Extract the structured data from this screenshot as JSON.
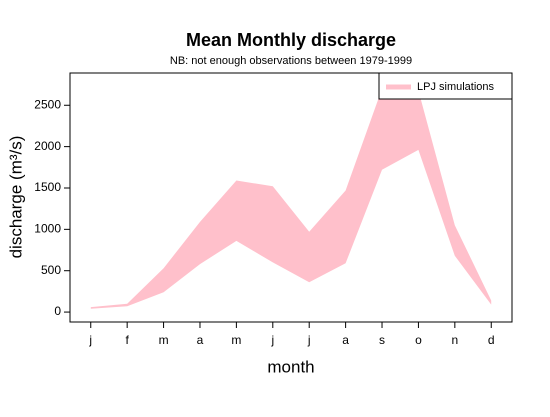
{
  "chart_data": {
    "type": "band",
    "title": "Mean Monthly discharge",
    "subtitle": "NB: not enough observations between 1979-1999",
    "xlabel": "month",
    "ylabel": "discharge (m³/s)",
    "categories": [
      "j",
      "f",
      "m",
      "a",
      "m",
      "j",
      "j",
      "a",
      "s",
      "o",
      "n",
      "d"
    ],
    "series": [
      {
        "name": "LPJ simulations",
        "color": "#ffc0cb",
        "lower": [
          40,
          70,
          240,
          580,
          860,
          600,
          360,
          590,
          1720,
          1960,
          680,
          90
        ],
        "upper": [
          60,
          100,
          530,
          1090,
          1590,
          1520,
          970,
          1470,
          2700,
          2680,
          1050,
          140
        ]
      }
    ],
    "ylim": [
      -120,
      2890
    ],
    "yticks": [
      0,
      500,
      1000,
      1500,
      2000,
      2500
    ],
    "legend": "top-right"
  }
}
